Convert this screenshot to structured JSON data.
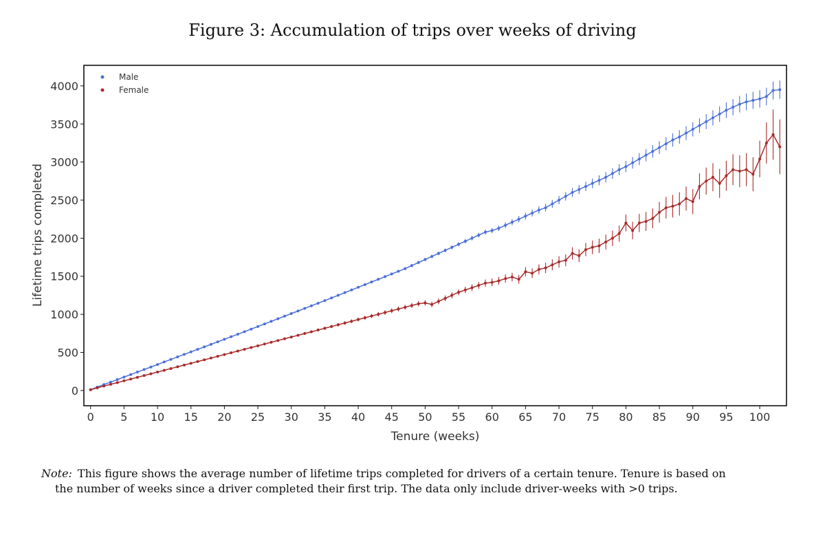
{
  "figure": {
    "title": "Figure 3:  Accumulation of trips over weeks of driving"
  },
  "note": {
    "lead": "Note:",
    "line1": "This figure shows the average number of lifetime trips completed for drivers of a certain tenure. Tenure is based on",
    "line2": "the number of weeks since a driver completed their first trip. The data only include driver-weeks with >0 trips."
  },
  "colors": {
    "male": "#4b6fd6",
    "female": "#a82a2a",
    "axis": "#111111"
  },
  "chart_data": {
    "type": "line",
    "title": "Figure 3:  Accumulation of trips over weeks of driving",
    "xlabel": "Tenure (weeks)",
    "ylabel": "Lifetime trips completed",
    "xlim": [
      -1,
      104
    ],
    "ylim": [
      -200,
      4270
    ],
    "xticks": [
      0,
      5,
      10,
      15,
      20,
      25,
      30,
      35,
      40,
      45,
      50,
      55,
      60,
      65,
      70,
      75,
      80,
      85,
      90,
      95,
      100
    ],
    "yticks": [
      0,
      500,
      1000,
      1500,
      2000,
      2500,
      3000,
      3500,
      4000
    ],
    "grid": false,
    "legend": "top-left",
    "x_range": [
      0,
      103
    ],
    "series": [
      {
        "name": "Male",
        "color": "#4b6fd6",
        "values": [
          10,
          45,
          78,
          110,
          143,
          176,
          209,
          242,
          275,
          308,
          341,
          375,
          408,
          441,
          474,
          507,
          540,
          573,
          606,
          639,
          673,
          706,
          739,
          772,
          806,
          840,
          874,
          908,
          942,
          976,
          1010,
          1044,
          1078,
          1112,
          1146,
          1180,
          1215,
          1250,
          1285,
          1320,
          1355,
          1390,
          1425,
          1460,
          1495,
          1530,
          1565,
          1600,
          1640,
          1680,
          1720,
          1760,
          1800,
          1840,
          1880,
          1920,
          1960,
          2000,
          2040,
          2080,
          2100,
          2130,
          2170,
          2210,
          2250,
          2290,
          2330,
          2370,
          2400,
          2450,
          2500,
          2550,
          2600,
          2640,
          2680,
          2720,
          2760,
          2800,
          2850,
          2900,
          2940,
          2990,
          3040,
          3090,
          3140,
          3190,
          3240,
          3290,
          3330,
          3380,
          3430,
          3480,
          3530,
          3580,
          3630,
          3680,
          3720,
          3760,
          3790,
          3810,
          3830,
          3860,
          3940,
          3950
        ],
        "errors": [
          2,
          2,
          2,
          2,
          2,
          3,
          3,
          3,
          3,
          3,
          4,
          4,
          4,
          4,
          5,
          5,
          5,
          5,
          6,
          6,
          6,
          7,
          7,
          7,
          8,
          8,
          9,
          9,
          9,
          10,
          10,
          11,
          11,
          12,
          12,
          13,
          13,
          14,
          14,
          15,
          15,
          16,
          16,
          17,
          17,
          18,
          18,
          19,
          20,
          21,
          22,
          23,
          24,
          25,
          26,
          27,
          28,
          29,
          30,
          32,
          34,
          36,
          38,
          40,
          42,
          44,
          46,
          48,
          50,
          52,
          54,
          56,
          58,
          60,
          62,
          64,
          66,
          68,
          70,
          72,
          74,
          76,
          78,
          80,
          82,
          84,
          86,
          88,
          90,
          92,
          94,
          96,
          98,
          100,
          102,
          104,
          106,
          108,
          110,
          112,
          114,
          116,
          118,
          120
        ]
      },
      {
        "name": "Female",
        "color": "#a82a2a",
        "values": [
          10,
          35,
          58,
          81,
          104,
          127,
          150,
          173,
          196,
          219,
          242,
          265,
          288,
          311,
          334,
          357,
          380,
          403,
          426,
          449,
          472,
          495,
          518,
          541,
          564,
          587,
          610,
          633,
          656,
          679,
          702,
          725,
          748,
          771,
          794,
          817,
          840,
          863,
          886,
          909,
          932,
          955,
          978,
          1001,
          1024,
          1047,
          1070,
          1093,
          1116,
          1139,
          1150,
          1130,
          1170,
          1210,
          1250,
          1290,
          1320,
          1350,
          1380,
          1410,
          1420,
          1440,
          1470,
          1490,
          1460,
          1560,
          1540,
          1590,
          1610,
          1650,
          1690,
          1710,
          1800,
          1770,
          1850,
          1880,
          1900,
          1950,
          2000,
          2060,
          2200,
          2100,
          2200,
          2220,
          2260,
          2340,
          2400,
          2420,
          2450,
          2520,
          2480,
          2680,
          2750,
          2800,
          2720,
          2820,
          2900,
          2880,
          2900,
          2840,
          3040,
          3250,
          3360,
          3200
        ],
        "errors": [
          2,
          3,
          3,
          3,
          4,
          4,
          4,
          5,
          5,
          5,
          6,
          6,
          6,
          7,
          7,
          8,
          8,
          8,
          9,
          9,
          10,
          10,
          11,
          11,
          12,
          12,
          13,
          13,
          14,
          14,
          15,
          16,
          17,
          18,
          19,
          20,
          21,
          22,
          23,
          24,
          25,
          26,
          27,
          28,
          29,
          30,
          31,
          32,
          33,
          34,
          35,
          36,
          37,
          38,
          39,
          40,
          42,
          44,
          46,
          48,
          50,
          52,
          54,
          56,
          58,
          60,
          63,
          66,
          69,
          72,
          75,
          78,
          81,
          84,
          87,
          90,
          94,
          98,
          102,
          106,
          110,
          115,
          120,
          125,
          130,
          136,
          142,
          148,
          154,
          160,
          166,
          172,
          178,
          184,
          190,
          196,
          203,
          210,
          217,
          224,
          240,
          270,
          330,
          360
        ]
      }
    ]
  }
}
